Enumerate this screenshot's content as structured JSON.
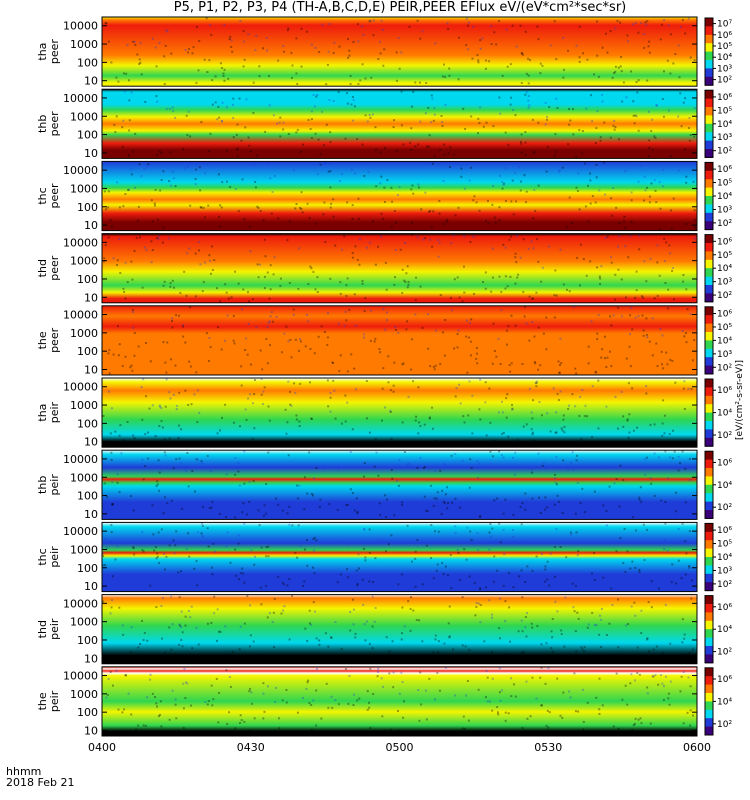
{
  "title": "P5, P1, P2, P3, P4 (TH-A,B,C,D,E) PEIR,PEER EFlux eV/(eV*cm²*sec*sr)",
  "x_caption": {
    "line1": "hhmm",
    "line2": "2018 Feb 21"
  },
  "colorbar_unit": "[eV/(cm²-s-sr-eV)]",
  "colors": {
    "red": "#ee1c0c",
    "orange": "#ff7a00",
    "yellow": "#f5f500",
    "green": "#2fd650",
    "cyan": "#00d8f0",
    "blue": "#1f3bd8",
    "black": "#000000",
    "darkred": "#7a0000"
  },
  "chart_data": {
    "type": "heatmap",
    "x_ticks": [
      "0400",
      "0430",
      "0500",
      "0530",
      "0600"
    ],
    "y_ticks": [
      "10",
      "100",
      "1000",
      "10000"
    ],
    "yscale": "log",
    "ylim": [
      5,
      30000
    ],
    "panels": [
      {
        "label1": "tha",
        "label2": "peer",
        "cb_ticks": [
          "10⁷",
          "10⁶",
          "10⁵",
          "10⁴",
          "10³",
          "10²"
        ],
        "bands": [
          [
            "#f5f500",
            0.0
          ],
          [
            "#ff7a00",
            0.04
          ],
          [
            "#ee1c0c",
            0.12
          ],
          [
            "#ff7a00",
            0.55
          ],
          [
            "#f5f500",
            0.7
          ],
          [
            "#2fd650",
            0.85
          ],
          [
            "#f5f500",
            0.95
          ]
        ]
      },
      {
        "label1": "thb",
        "label2": "peer",
        "cb_ticks": [
          "10⁶",
          "10⁵",
          "10⁴",
          "10³",
          "10²"
        ],
        "bands": [
          [
            "#000000",
            0.0
          ],
          [
            "#00d8f0",
            0.04
          ],
          [
            "#00d8f0",
            0.22
          ],
          [
            "#2fd650",
            0.3
          ],
          [
            "#f5f500",
            0.4
          ],
          [
            "#ff7a00",
            0.5
          ],
          [
            "#f5f500",
            0.6
          ],
          [
            "#2fd650",
            0.66
          ],
          [
            "#ee1c0c",
            0.78
          ],
          [
            "#7a0000",
            0.88
          ]
        ]
      },
      {
        "label1": "thc",
        "label2": "peer",
        "cb_ticks": [
          "10⁶",
          "10⁵",
          "10⁴",
          "10³",
          "10²"
        ],
        "bands": [
          [
            "#1f3bd8",
            0.0
          ],
          [
            "#00d8f0",
            0.3
          ],
          [
            "#2fd650",
            0.38
          ],
          [
            "#f5f500",
            0.45
          ],
          [
            "#ff7a00",
            0.55
          ],
          [
            "#f5f500",
            0.63
          ],
          [
            "#ee1c0c",
            0.75
          ],
          [
            "#7a0000",
            0.88
          ]
        ]
      },
      {
        "label1": "thd",
        "label2": "peer",
        "cb_ticks": [
          "10⁶",
          "10⁵",
          "10⁴",
          "10³",
          "10²"
        ],
        "bands": [
          [
            "#000000",
            0.0
          ],
          [
            "#ee1c0c",
            0.04
          ],
          [
            "#ff7a00",
            0.4
          ],
          [
            "#f5f500",
            0.55
          ],
          [
            "#2fd650",
            0.75
          ],
          [
            "#f5f500",
            0.85
          ],
          [
            "#ee1c0c",
            0.94
          ]
        ]
      },
      {
        "label1": "the",
        "label2": "peer",
        "cb_ticks": [
          "10⁶",
          "10⁵",
          "10⁴",
          "10³",
          "10²"
        ],
        "bands": [
          [
            "#ee1c0c",
            0.0
          ],
          [
            "#ff7a00",
            0.15
          ],
          [
            "#ee1c0c",
            0.3
          ],
          [
            "#ff7a00",
            0.4
          ],
          [
            "#ff7a00",
            0.9
          ]
        ]
      },
      {
        "label1": "tha",
        "label2": "peir",
        "cb_ticks": [
          "10⁶",
          "10⁴",
          "10²"
        ],
        "bands": [
          [
            "#ffffff",
            0.0
          ],
          [
            "#f5f500",
            0.06
          ],
          [
            "#ff7a00",
            0.18
          ],
          [
            "#f5f500",
            0.35
          ],
          [
            "#2fd650",
            0.6
          ],
          [
            "#00d8f0",
            0.82
          ],
          [
            "#000000",
            0.92
          ]
        ]
      },
      {
        "label1": "thb",
        "label2": "peir",
        "cb_ticks": [
          "10⁶",
          "10⁴",
          "10²"
        ],
        "bands": [
          [
            "#ffffff",
            0.0
          ],
          [
            "#00d8f0",
            0.06
          ],
          [
            "#1f3bd8",
            0.25
          ],
          [
            "#2fd650",
            0.38
          ],
          [
            "#ee1c0c",
            0.42
          ],
          [
            "#2fd650",
            0.47
          ],
          [
            "#00d8f0",
            0.52
          ],
          [
            "#1f3bd8",
            0.75
          ]
        ]
      },
      {
        "label1": "thc",
        "label2": "peir",
        "cb_ticks": [
          "10⁶",
          "10⁵",
          "10⁴",
          "10³",
          "10²"
        ],
        "bands": [
          [
            "#ffffff",
            0.0
          ],
          [
            "#00d8f0",
            0.06
          ],
          [
            "#1f3bd8",
            0.3
          ],
          [
            "#2fd650",
            0.4
          ],
          [
            "#ee1c0c",
            0.44
          ],
          [
            "#f5f500",
            0.48
          ],
          [
            "#00d8f0",
            0.53
          ],
          [
            "#1f3bd8",
            0.75
          ]
        ]
      },
      {
        "label1": "thd",
        "label2": "peir",
        "cb_ticks": [
          "10⁶",
          "10⁴",
          "10²"
        ],
        "bands": [
          [
            "#ffffff",
            0.0
          ],
          [
            "#ff7a00",
            0.05
          ],
          [
            "#f5f500",
            0.2
          ],
          [
            "#2fd650",
            0.45
          ],
          [
            "#00d8f0",
            0.7
          ],
          [
            "#000000",
            0.88
          ]
        ]
      },
      {
        "label1": "the",
        "label2": "peir",
        "cb_ticks": [
          "10⁶",
          "10⁴",
          "10²"
        ],
        "bands": [
          [
            "#ee1c0c",
            0.0
          ],
          [
            "#ffffff",
            0.03
          ],
          [
            "#ee1c0c",
            0.06
          ],
          [
            "#ffffff",
            0.09
          ],
          [
            "#f5f500",
            0.13
          ],
          [
            "#2fd650",
            0.5
          ],
          [
            "#f5f500",
            0.65
          ],
          [
            "#2fd650",
            0.85
          ],
          [
            "#000000",
            0.93
          ]
        ]
      }
    ]
  }
}
